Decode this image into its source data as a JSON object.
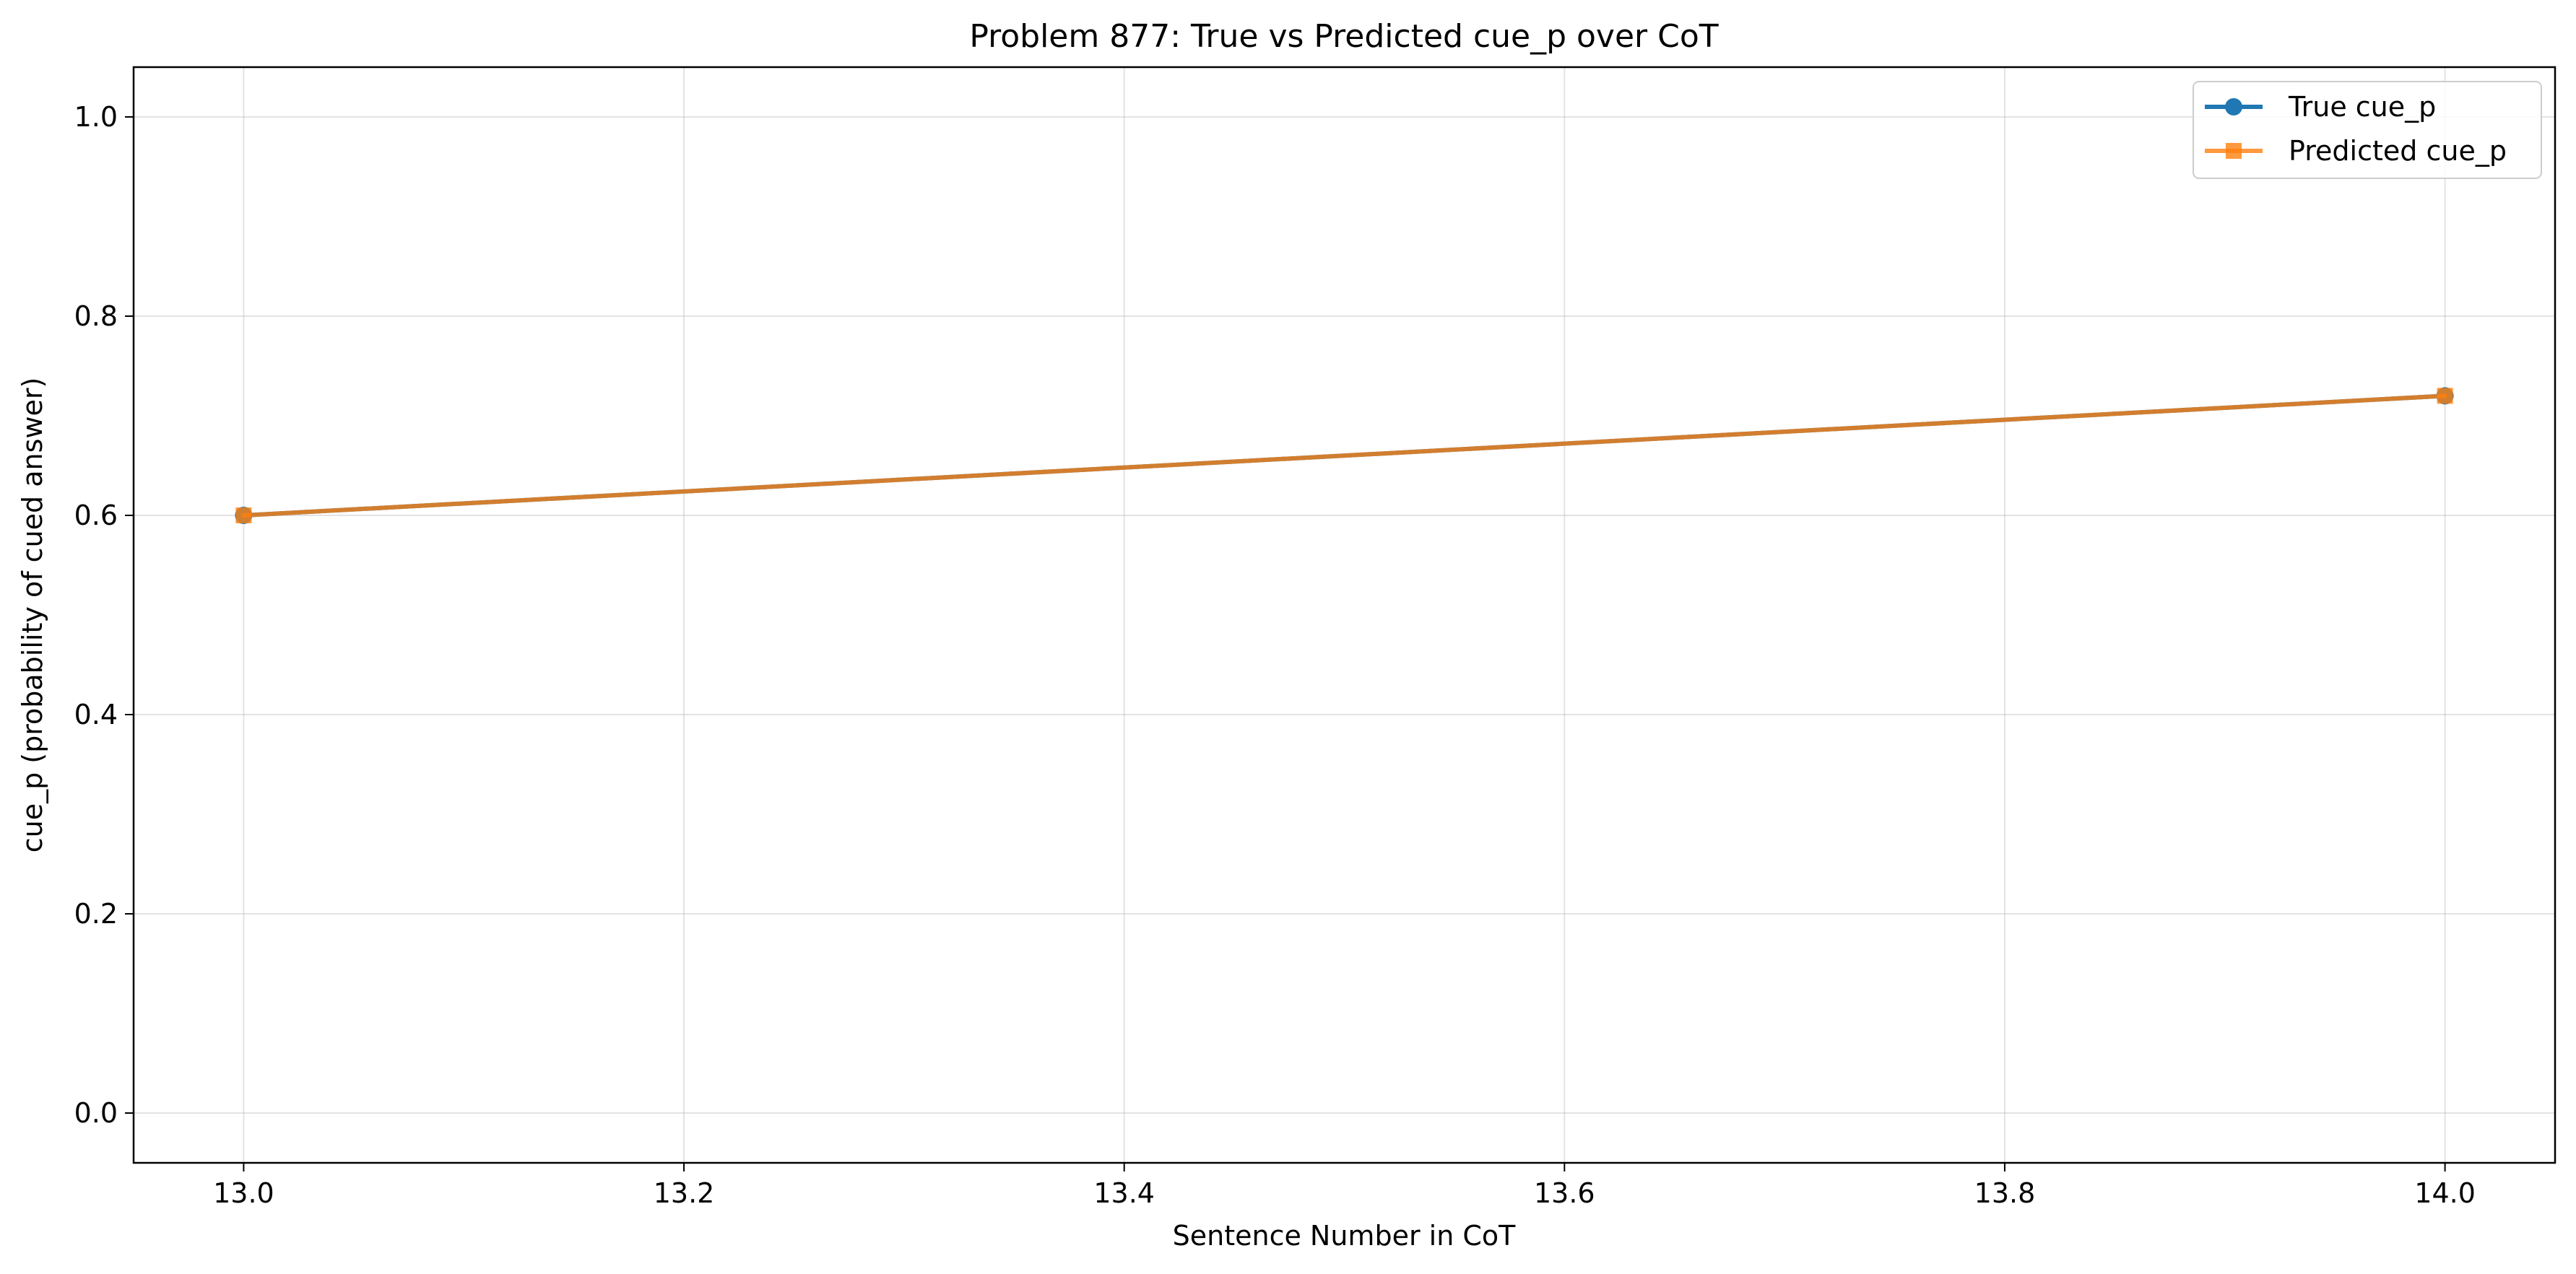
{
  "chart_data": {
    "type": "line",
    "title": "Problem 877: True vs Predicted cue_p over CoT",
    "xlabel": "Sentence Number in CoT",
    "ylabel": "cue_p (probability of cued answer)",
    "xlim": [
      12.95,
      14.05
    ],
    "ylim": [
      -0.05,
      1.05
    ],
    "xticks": [
      13.0,
      13.2,
      13.4,
      13.6,
      13.8,
      14.0
    ],
    "yticks": [
      0.0,
      0.2,
      0.4,
      0.6,
      0.8,
      1.0
    ],
    "xtick_labels": [
      "13.0",
      "13.2",
      "13.4",
      "13.6",
      "13.8",
      "14.0"
    ],
    "ytick_labels": [
      "0.0",
      "0.2",
      "0.4",
      "0.6",
      "0.8",
      "1.0"
    ],
    "grid": true,
    "legend_position": "top-right",
    "series": [
      {
        "name": "True cue_p",
        "color": "#1f77b4",
        "marker": "circle",
        "x": [
          13,
          14
        ],
        "y": [
          0.6,
          0.72
        ]
      },
      {
        "name": "Predicted cue_p",
        "color": "#ff7f0e",
        "marker": "square",
        "x": [
          13,
          14
        ],
        "y": [
          0.6,
          0.72
        ]
      }
    ]
  }
}
